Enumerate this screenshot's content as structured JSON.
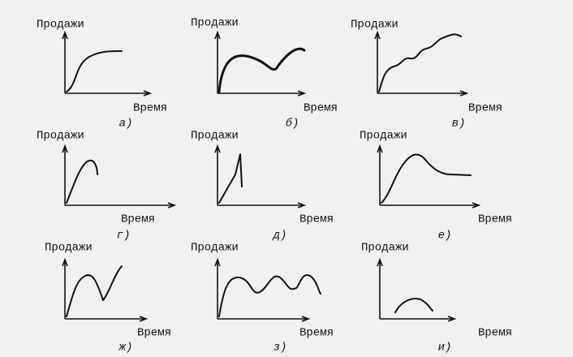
{
  "panels": [
    {
      "y_label": "Продажи",
      "x_label": "Время",
      "caption": "а)"
    },
    {
      "y_label": "Продажи",
      "x_label": "Время",
      "caption": "б)"
    },
    {
      "y_label": "Продажи",
      "x_label": "Время",
      "caption": "в)"
    },
    {
      "y_label": "Продажи",
      "x_label": "Время",
      "caption": "г)"
    },
    {
      "y_label": "Продажи",
      "x_label": "Время",
      "caption": "д)"
    },
    {
      "y_label": "Продажи",
      "x_label": "Время",
      "caption": "е)"
    },
    {
      "y_label": "Продажи",
      "x_label": "Время",
      "caption": "ж)"
    },
    {
      "y_label": "Продажи",
      "x_label": "Время",
      "caption": "з)"
    },
    {
      "y_label": "Продажи",
      "x_label": "Время",
      "caption": "и)"
    }
  ]
}
